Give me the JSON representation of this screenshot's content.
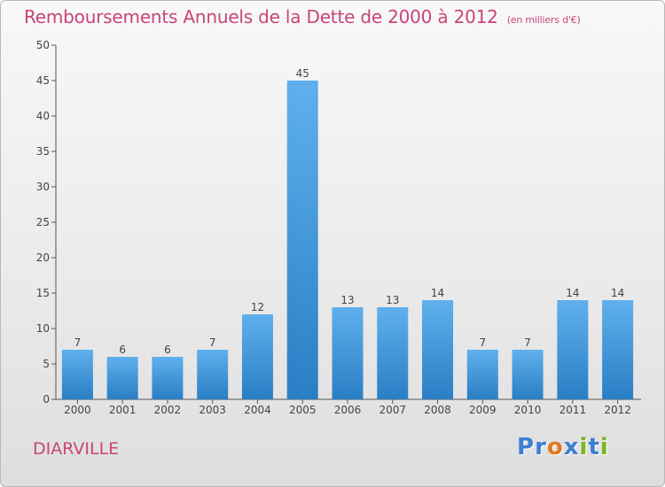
{
  "header": {
    "title": "Remboursements Annuels de la Dette de 2000 à 2012",
    "subtitle": "(en milliers d'€)"
  },
  "footer": {
    "city": "DIARVILLE",
    "logo_text": "Proxiti",
    "logo_letters": [
      {
        "ch": "P",
        "color": "#3a7fd0"
      },
      {
        "ch": "r",
        "color": "#3a7fd0"
      },
      {
        "ch": "o",
        "color": "#e07a1e"
      },
      {
        "ch": "x",
        "color": "#3a7fd0"
      },
      {
        "ch": "i",
        "color": "#7ab51d"
      },
      {
        "ch": "t",
        "color": "#3a7fd0"
      },
      {
        "ch": "i",
        "color": "#7ab51d"
      }
    ]
  },
  "colors": {
    "title": "#c8457a",
    "bar_light": "#5fb0ec",
    "bar_dark": "#2a7ec4",
    "axis": "#555555"
  },
  "chart_data": {
    "type": "bar",
    "title": "Remboursements Annuels de la Dette de 2000 à 2012",
    "subtitle": "(en milliers d'€)",
    "categories": [
      "2000",
      "2001",
      "2002",
      "2003",
      "2004",
      "2005",
      "2006",
      "2007",
      "2008",
      "2009",
      "2010",
      "2011",
      "2012"
    ],
    "values": [
      7,
      6,
      6,
      7,
      12,
      45,
      13,
      13,
      14,
      7,
      7,
      14,
      14
    ],
    "ylim": [
      0,
      50
    ],
    "yticks": [
      0,
      5,
      10,
      15,
      20,
      25,
      30,
      35,
      40,
      45,
      50
    ],
    "grid": false,
    "data_labels": true
  }
}
